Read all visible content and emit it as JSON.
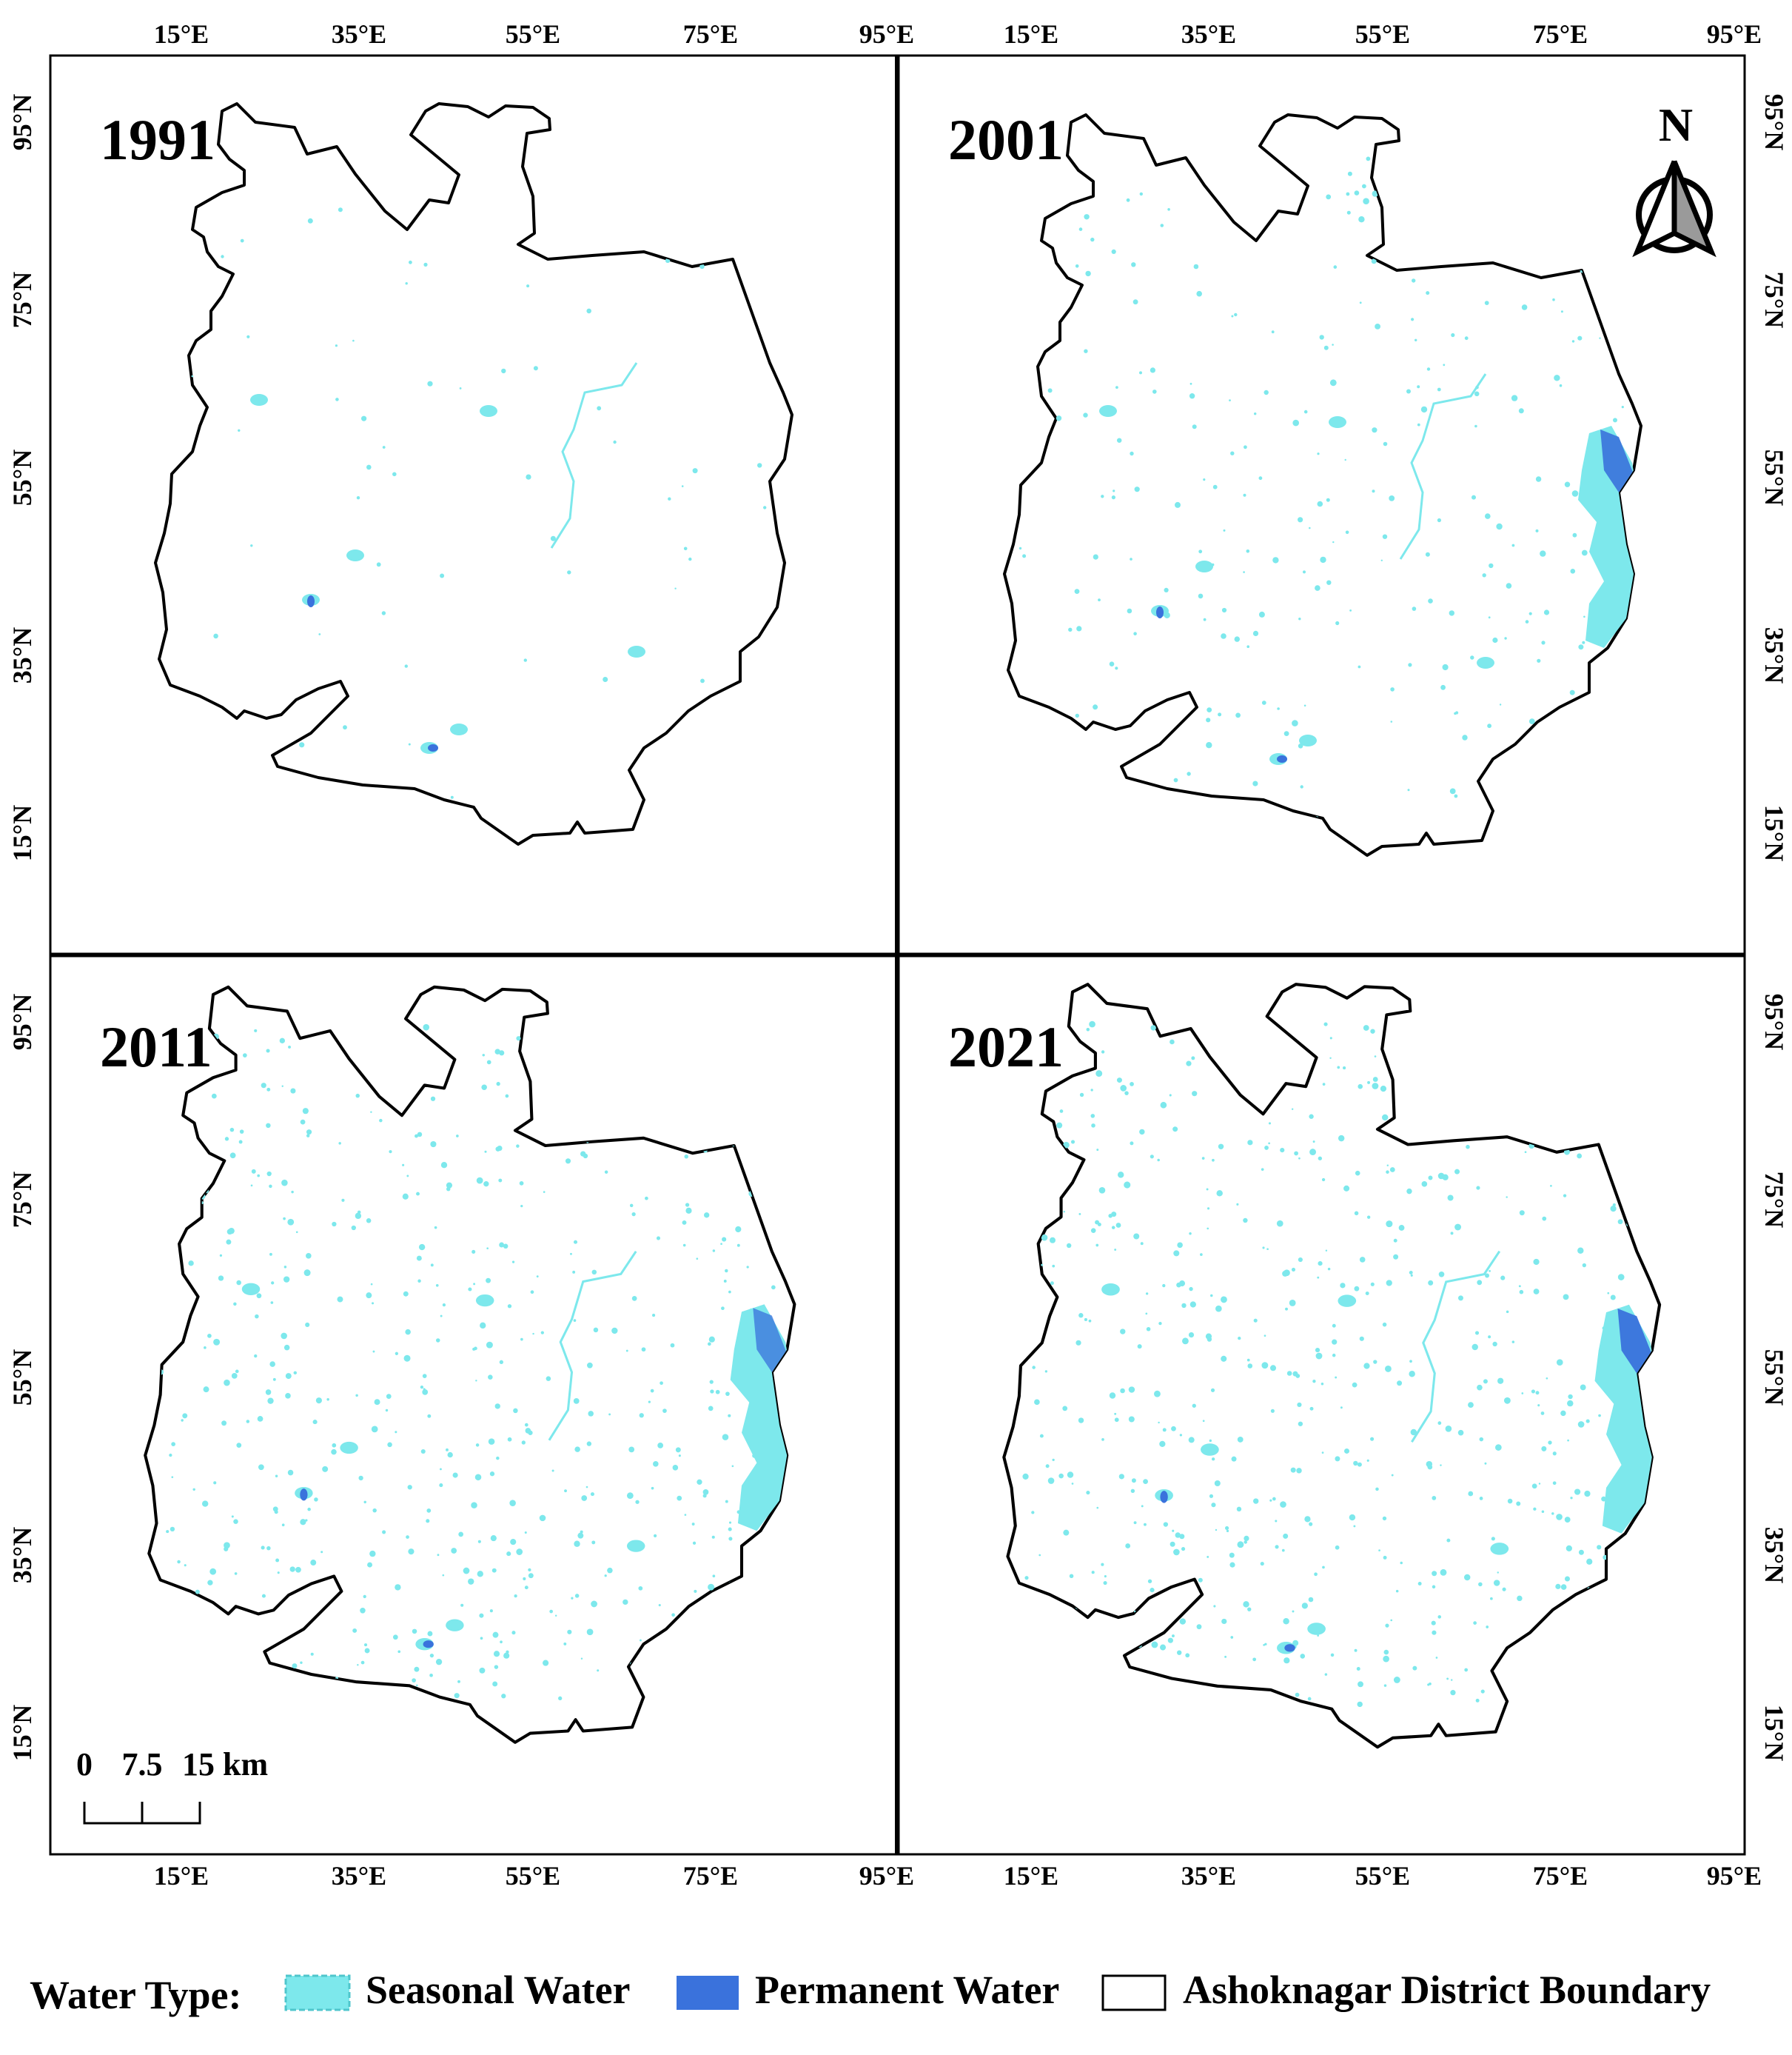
{
  "panels": [
    {
      "year": "1991",
      "permanent_level": 0.0
    },
    {
      "year": "2001",
      "permanent_level": 0.9
    },
    {
      "year": "2011",
      "permanent_level": 0.75
    },
    {
      "year": "2021",
      "permanent_level": 0.95
    }
  ],
  "axes": {
    "lon_ticks": [
      "15°E",
      "35°E",
      "55°E",
      "75°E",
      "95°E"
    ],
    "lat_ticks": [
      "95°N",
      "75°N",
      "55°N",
      "35°N",
      "15°N"
    ]
  },
  "north_arrow": {
    "label": "N",
    "icon": "north-arrow-icon"
  },
  "scale_bar": {
    "labels": [
      "0",
      "7.5",
      "15 km"
    ]
  },
  "legend": {
    "title": "Water Type:",
    "items": [
      {
        "label": "Seasonal Water",
        "color": "#7de8ec"
      },
      {
        "label": "Permanent Water",
        "color": "#3a72dc"
      },
      {
        "label": "Ashoknagar District Boundary",
        "color": "#ffffff"
      }
    ]
  },
  "colors": {
    "seasonal": "#7de8ec",
    "permanent": "#3a72dc",
    "boundary": "#000000"
  }
}
